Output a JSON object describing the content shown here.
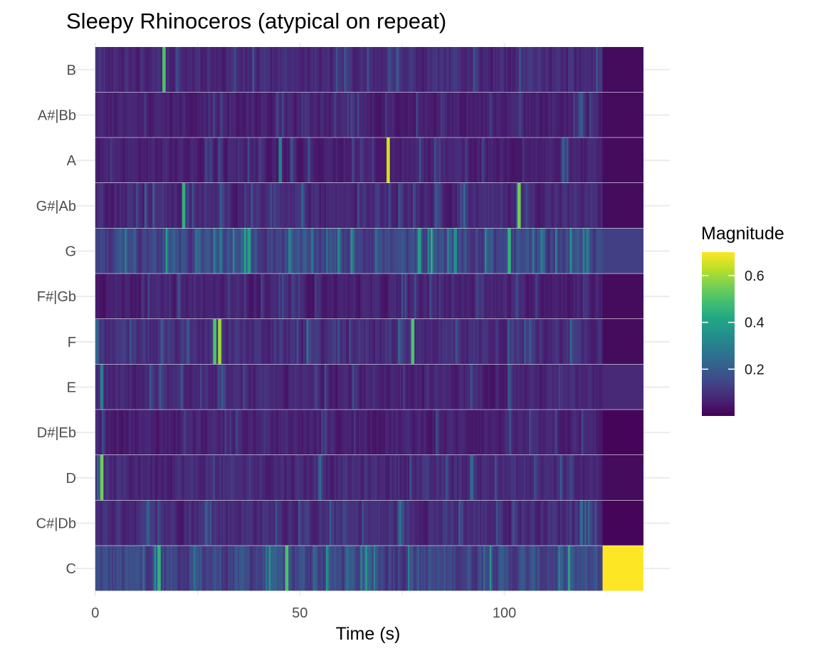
{
  "chart_data": {
    "type": "heatmap",
    "title": "Sleepy Rhinoceros (atypical on repeat)",
    "xlabel": "Time (s)",
    "ylabel": "",
    "x_ticks": [
      0,
      50,
      100
    ],
    "xlim": [
      -0.5,
      134
    ],
    "pitch_classes": [
      "C",
      "C#|Db",
      "D",
      "D#|Eb",
      "E",
      "F",
      "F#|Gb",
      "G",
      "G#|Ab",
      "A",
      "A#|Bb",
      "B"
    ],
    "segment_duration_s": 0.4,
    "music_end_s": 124,
    "tail_segment": {
      "start_s": 124,
      "end_s": 134,
      "values": {
        "C": 0.7,
        "C#|Db": 0.01,
        "D": 0.02,
        "D#|Eb": 0.01,
        "E": 0.08,
        "F": 0.02,
        "F#|Gb": 0.02,
        "G": 0.13,
        "G#|Ab": 0.02,
        "A": 0.02,
        "A#|Bb": 0.02,
        "B": 0.02
      }
    },
    "magnitude_profile": {
      "C": 0.16,
      "C#|Db": 0.1,
      "D": 0.09,
      "D#|Eb": 0.07,
      "E": 0.08,
      "F": 0.1,
      "F#|Gb": 0.07,
      "G": 0.16,
      "G#|Ab": 0.09,
      "A": 0.07,
      "A#|Bb": 0.07,
      "B": 0.09
    },
    "highlights": [
      {
        "pitch": "F",
        "time_s": 30,
        "value": 0.6
      },
      {
        "pitch": "F",
        "time_s": 29,
        "value": 0.5
      },
      {
        "pitch": "F",
        "time_s": 77.5,
        "value": 0.5
      },
      {
        "pitch": "A",
        "time_s": 71.5,
        "value": 0.65
      },
      {
        "pitch": "G#|Ab",
        "time_s": 103.5,
        "value": 0.55
      },
      {
        "pitch": "G#|Ab",
        "time_s": 21.5,
        "value": 0.45
      },
      {
        "pitch": "B",
        "time_s": 16.5,
        "value": 0.5
      },
      {
        "pitch": "D",
        "time_s": 1.5,
        "value": 0.55
      },
      {
        "pitch": "C",
        "time_s": 46.5,
        "value": 0.5
      },
      {
        "pitch": "C",
        "time_s": 15.5,
        "value": 0.45
      },
      {
        "pitch": "G",
        "time_s": 101,
        "value": 0.45
      },
      {
        "pitch": "G",
        "time_s": 37.5,
        "value": 0.4
      },
      {
        "pitch": "G",
        "time_s": 79,
        "value": 0.4
      },
      {
        "pitch": "G",
        "time_s": 88,
        "value": 0.35
      },
      {
        "pitch": "E",
        "time_s": 1.5,
        "value": 0.3
      },
      {
        "pitch": "A",
        "time_s": 45,
        "value": 0.3
      }
    ],
    "legend": {
      "title": "Magnitude",
      "position": "right",
      "ticks": [
        {
          "value": 0.2,
          "label": "0.2"
        },
        {
          "value": 0.4,
          "label": "0.4"
        },
        {
          "value": 0.6,
          "label": "0.6"
        }
      ],
      "min": 0.0,
      "max": 0.7
    },
    "colormap": "viridis",
    "grid": true
  }
}
